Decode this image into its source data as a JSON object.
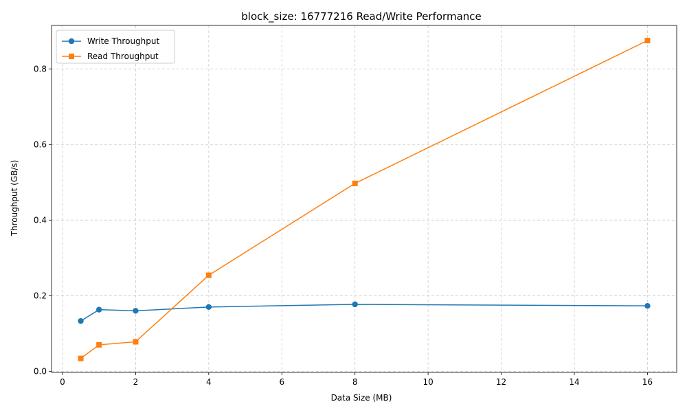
{
  "chart_data": {
    "type": "line",
    "title": "block_size: 16777216 Read/Write Performance",
    "xlabel": "Data Size (MB)",
    "ylabel": "Throughput (GB/s)",
    "xlim": [
      -0.3,
      16.8
    ],
    "ylim": [
      -0.003,
      0.915
    ],
    "xticks": [
      0,
      2,
      4,
      6,
      8,
      10,
      12,
      14,
      16
    ],
    "yticks": [
      0.0,
      0.2,
      0.4,
      0.6,
      0.8
    ],
    "xtick_labels": [
      "0",
      "2",
      "4",
      "6",
      "8",
      "10",
      "12",
      "14",
      "16"
    ],
    "ytick_labels": [
      "0.0",
      "0.2",
      "0.4",
      "0.6",
      "0.8"
    ],
    "grid": true,
    "legend_position": "top-left",
    "x": [
      0.5,
      1,
      2,
      4,
      8,
      16
    ],
    "series": [
      {
        "name": "Write Throughput",
        "color": "#1f77b4",
        "marker": "circle",
        "values": [
          0.133,
          0.163,
          0.16,
          0.17,
          0.177,
          0.173
        ]
      },
      {
        "name": "Read Throughput",
        "color": "#ff7f0e",
        "marker": "square",
        "values": [
          0.034,
          0.07,
          0.078,
          0.254,
          0.497,
          0.875
        ]
      }
    ]
  }
}
